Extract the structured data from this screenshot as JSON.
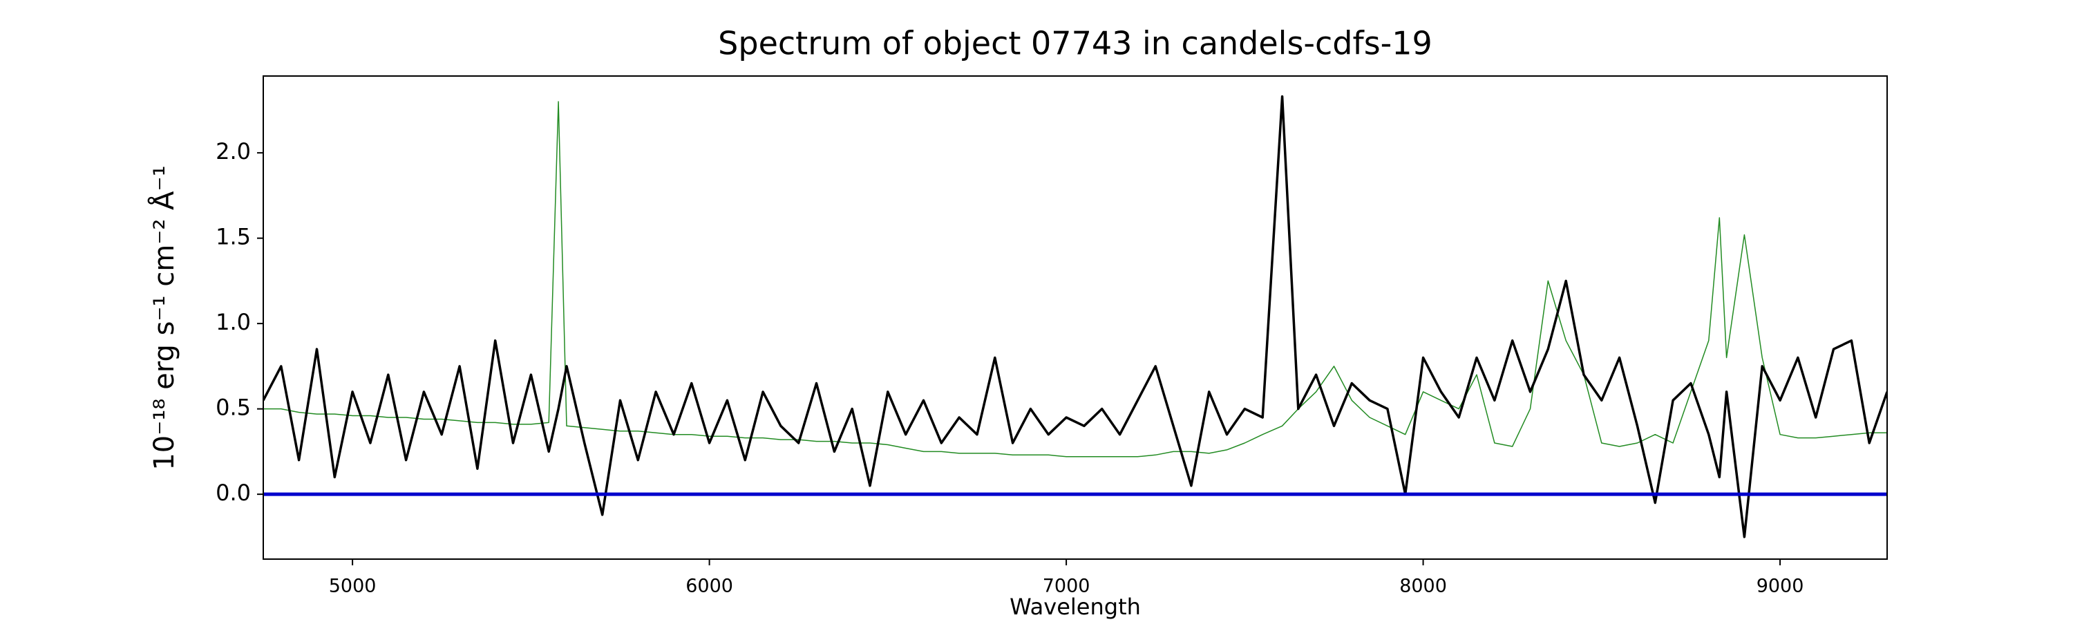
{
  "chart_data": {
    "type": "line",
    "title": "Spectrum of object 07743 in candels-cdfs-19",
    "x_label": "Wavelength",
    "y_label": "10⁻¹⁸ erg s⁻¹ cm⁻² Å⁻¹",
    "x": [
      4750,
      4800,
      4850,
      4900,
      4950,
      5000,
      5050,
      5100,
      5150,
      5200,
      5250,
      5300,
      5350,
      5400,
      5450,
      5500,
      5550,
      5577,
      5600,
      5650,
      5700,
      5750,
      5800,
      5850,
      5900,
      5950,
      6000,
      6050,
      6100,
      6150,
      6200,
      6250,
      6300,
      6350,
      6400,
      6450,
      6500,
      6550,
      6600,
      6650,
      6700,
      6750,
      6800,
      6850,
      6900,
      6950,
      7000,
      7050,
      7100,
      7150,
      7200,
      7250,
      7300,
      7350,
      7400,
      7450,
      7500,
      7550,
      7605,
      7650,
      7700,
      7750,
      7800,
      7850,
      7900,
      7950,
      8000,
      8050,
      8100,
      8150,
      8200,
      8250,
      8300,
      8350,
      8400,
      8450,
      8500,
      8550,
      8600,
      8650,
      8700,
      8750,
      8800,
      8830,
      8850,
      8900,
      8950,
      9000,
      9050,
      9100,
      9150,
      9200,
      9250,
      9300
    ],
    "series": [
      {
        "color": "#228b22",
        "values": [
          0.5,
          0.5,
          0.48,
          0.47,
          0.47,
          0.46,
          0.46,
          0.45,
          0.45,
          0.44,
          0.44,
          0.43,
          0.42,
          0.42,
          0.41,
          0.41,
          0.42,
          2.3,
          0.4,
          0.39,
          0.38,
          0.37,
          0.37,
          0.36,
          0.35,
          0.35,
          0.34,
          0.34,
          0.33,
          0.33,
          0.32,
          0.32,
          0.31,
          0.31,
          0.3,
          0.3,
          0.29,
          0.27,
          0.25,
          0.25,
          0.24,
          0.24,
          0.24,
          0.23,
          0.23,
          0.23,
          0.22,
          0.22,
          0.22,
          0.22,
          0.22,
          0.23,
          0.25,
          0.25,
          0.24,
          0.26,
          0.3,
          0.35,
          0.4,
          0.5,
          0.6,
          0.75,
          0.55,
          0.45,
          0.4,
          0.35,
          0.6,
          0.55,
          0.5,
          0.7,
          0.3,
          0.28,
          0.5,
          1.25,
          0.9,
          0.7,
          0.3,
          0.28,
          0.3,
          0.35,
          0.3,
          0.6,
          0.9,
          1.62,
          0.8,
          1.52,
          0.8,
          0.35,
          0.33,
          0.33,
          0.34,
          0.35,
          0.36,
          0.36
        ]
      },
      {
        "color": "#000000",
        "values": [
          0.55,
          0.75,
          0.2,
          0.85,
          0.1,
          0.6,
          0.3,
          0.7,
          0.2,
          0.6,
          0.35,
          0.75,
          0.15,
          0.9,
          0.3,
          0.7,
          0.25,
          0.5,
          0.75,
          0.3,
          -0.12,
          0.55,
          0.2,
          0.6,
          0.35,
          0.65,
          0.3,
          0.55,
          0.2,
          0.6,
          0.4,
          0.3,
          0.65,
          0.25,
          0.5,
          0.05,
          0.6,
          0.35,
          0.55,
          0.3,
          0.45,
          0.35,
          0.8,
          0.3,
          0.5,
          0.35,
          0.45,
          0.4,
          0.5,
          0.35,
          0.55,
          0.75,
          0.4,
          0.05,
          0.6,
          0.35,
          0.5,
          0.45,
          2.33,
          0.5,
          0.7,
          0.4,
          0.65,
          0.55,
          0.5,
          0.0,
          0.8,
          0.6,
          0.45,
          0.8,
          0.55,
          0.9,
          0.6,
          0.85,
          1.25,
          0.7,
          0.55,
          0.8,
          0.4,
          -0.05,
          0.55,
          0.65,
          0.35,
          0.1,
          0.6,
          -0.25,
          0.75,
          0.55,
          0.8,
          0.45,
          0.85,
          0.9,
          0.3,
          0.6
        ]
      }
    ],
    "hline": 0,
    "hline_color": "#0000cc",
    "xlim": [
      4750,
      9300
    ],
    "xticks": [
      5000,
      6000,
      7000,
      8000,
      9000
    ],
    "ylim": [
      -0.38,
      2.45
    ],
    "yticks": [
      {
        "value": 0,
        "label": "0.0"
      },
      {
        "value": 0.5,
        "label": "0.5"
      },
      {
        "value": 1,
        "label": "1.0"
      },
      {
        "value": 1.5,
        "label": "1.5"
      },
      {
        "value": 2,
        "label": "2.0"
      }
    ],
    "grid": false
  }
}
